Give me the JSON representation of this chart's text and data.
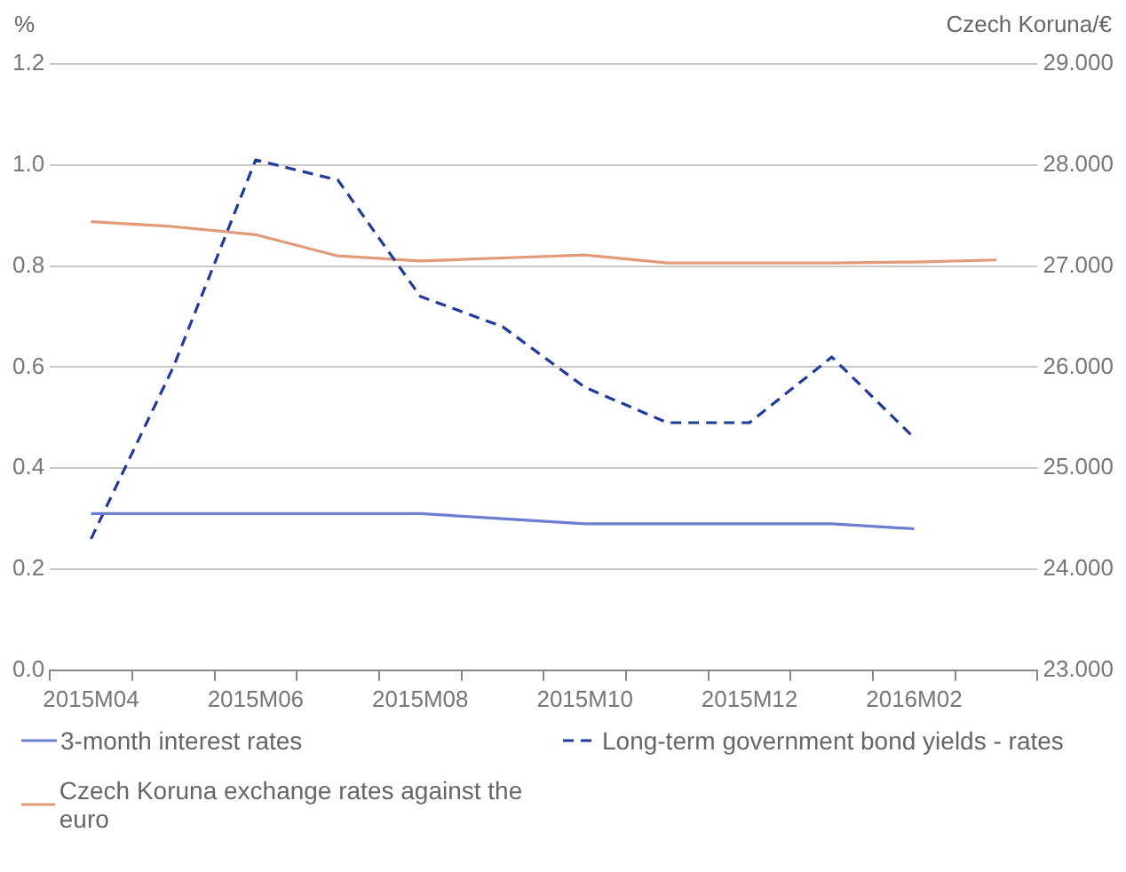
{
  "chart_data": {
    "type": "line",
    "ylabel": "%",
    "y2label": "Czech Koruna/€",
    "categories": [
      "2015M04",
      null,
      "2015M06",
      null,
      "2015M08",
      null,
      "2015M10",
      null,
      "2015M12",
      null,
      "2016M02",
      null
    ],
    "series": [
      {
        "name": "3-month interest rates",
        "color": "#6a7fcf",
        "line_style": "solid",
        "values": [
          0.31,
          0.31,
          0.31,
          0.31,
          0.31,
          0.3,
          0.29,
          0.29,
          0.29,
          0.29,
          0.28,
          null
        ]
      },
      {
        "name": "Long-term government bond yields - rates",
        "color": "#1f3a9a",
        "line_style": "dashed",
        "values": [
          0.26,
          0.6,
          1.01,
          0.97,
          0.74,
          0.68,
          0.56,
          0.49,
          0.49,
          0.62,
          0.46,
          null
        ]
      },
      {
        "name": "Czech Koruna exchange rates against the euro",
        "color": "#e39a78",
        "line_style": "solid",
        "axis": "y2",
        "values": [
          27.44,
          27.39,
          27.31,
          27.1,
          27.05,
          27.08,
          27.11,
          27.03,
          27.03,
          27.03,
          27.04,
          27.06
        ]
      }
    ],
    "ylim": [
      0,
      1.2
    ],
    "yticks": [
      {
        "value": 0,
        "label": "0.0"
      },
      {
        "value": 0.2,
        "label": "0.2"
      },
      {
        "value": 0.4,
        "label": "0.4"
      },
      {
        "value": 0.6,
        "label": "0.6"
      },
      {
        "value": 0.8,
        "label": "0.8"
      },
      {
        "value": 1,
        "label": "1.0"
      },
      {
        "value": 1.2,
        "label": "1.2"
      }
    ],
    "y2lim": [
      23,
      29
    ],
    "y2ticks": [
      {
        "value": 23,
        "label": "23.000"
      },
      {
        "value": 24,
        "label": "24.000"
      },
      {
        "value": 25,
        "label": "25.000"
      },
      {
        "value": 26,
        "label": "26.000"
      },
      {
        "value": 27,
        "label": "27.000"
      },
      {
        "value": 28,
        "label": "28.000"
      },
      {
        "value": 29,
        "label": "29.000"
      }
    ],
    "grid": "y",
    "legend": "bottom",
    "marker": "none"
  }
}
